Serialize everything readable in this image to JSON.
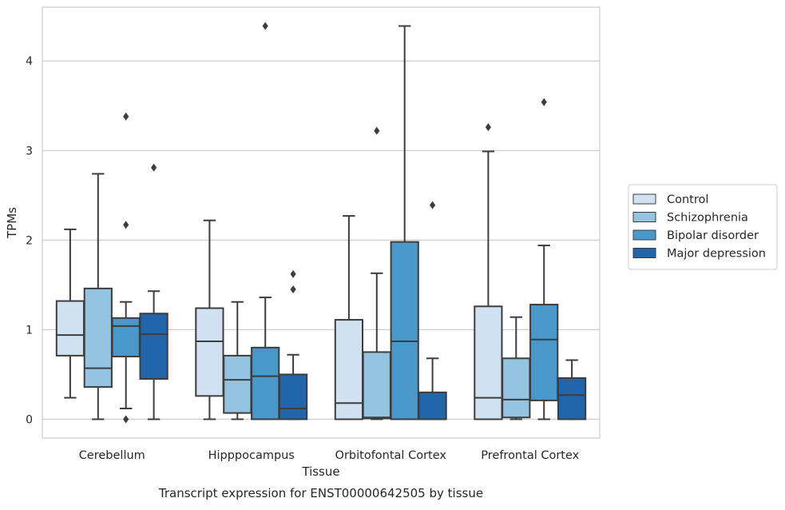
{
  "chart_data": {
    "type": "boxplot",
    "caption": "Transcript expression for ENST00000642505 by tissue",
    "xlabel": "Tissue",
    "ylabel": "TPMs",
    "ylim": [
      -0.21,
      4.6
    ],
    "yticks": [
      0,
      1,
      2,
      3,
      4
    ],
    "grid": "horizontal",
    "legend_position": "right",
    "categories": [
      "Cerebellum",
      "Hipppocampus",
      "Orbitofontal Cortex",
      "Prefrontal Cortex"
    ],
    "series": [
      {
        "name": "Control",
        "color": "#d0e1f2",
        "boxes": [
          {
            "whislo": 0.24,
            "q1": 0.71,
            "med": 0.94,
            "q3": 1.32,
            "whishi": 2.12,
            "fliers": []
          },
          {
            "whislo": 0.0,
            "q1": 0.26,
            "med": 0.87,
            "q3": 1.24,
            "whishi": 2.22,
            "fliers": []
          },
          {
            "whislo": 0.0,
            "q1": 0.0,
            "med": 0.18,
            "q3": 1.11,
            "whishi": 2.27,
            "fliers": []
          },
          {
            "whislo": 0.0,
            "q1": 0.0,
            "med": 0.24,
            "q3": 1.26,
            "whishi": 2.99,
            "fliers": [
              3.26
            ]
          }
        ]
      },
      {
        "name": "Schizophrenia",
        "color": "#94c4df",
        "boxes": [
          {
            "whislo": 0.0,
            "q1": 0.36,
            "med": 0.57,
            "q3": 1.46,
            "whishi": 2.74,
            "fliers": []
          },
          {
            "whislo": 0.0,
            "q1": 0.07,
            "med": 0.44,
            "q3": 0.71,
            "whishi": 1.31,
            "fliers": []
          },
          {
            "whislo": 0.0,
            "q1": 0.01,
            "med": 0.02,
            "q3": 0.75,
            "whishi": 1.63,
            "fliers": [
              3.22
            ]
          },
          {
            "whislo": 0.0,
            "q1": 0.02,
            "med": 0.22,
            "q3": 0.68,
            "whishi": 1.14,
            "fliers": []
          }
        ]
      },
      {
        "name": "Bipolar disorder",
        "color": "#4a98c9",
        "boxes": [
          {
            "whislo": 0.12,
            "q1": 0.7,
            "med": 1.04,
            "q3": 1.13,
            "whishi": 1.31,
            "fliers": [
              0.0,
              2.17,
              3.38
            ]
          },
          {
            "whislo": 0.0,
            "q1": 0.0,
            "med": 0.48,
            "q3": 0.8,
            "whishi": 1.36,
            "fliers": [
              4.39
            ]
          },
          {
            "whislo": 0.0,
            "q1": 0.0,
            "med": 0.87,
            "q3": 1.98,
            "whishi": 4.39,
            "fliers": []
          },
          {
            "whislo": 0.0,
            "q1": 0.21,
            "med": 0.89,
            "q3": 1.28,
            "whishi": 1.94,
            "fliers": [
              3.54
            ]
          }
        ]
      },
      {
        "name": "Major depression",
        "color": "#2165ab",
        "boxes": [
          {
            "whislo": 0.0,
            "q1": 0.45,
            "med": 0.95,
            "q3": 1.18,
            "whishi": 1.43,
            "fliers": [
              2.81
            ]
          },
          {
            "whislo": 0.0,
            "q1": 0.0,
            "med": 0.12,
            "q3": 0.5,
            "whishi": 0.72,
            "fliers": [
              1.45,
              1.62
            ]
          },
          {
            "whislo": 0.0,
            "q1": 0.0,
            "med": 0.0,
            "q3": 0.3,
            "whishi": 0.68,
            "fliers": [
              2.39
            ]
          },
          {
            "whislo": 0.0,
            "q1": 0.0,
            "med": 0.27,
            "q3": 0.46,
            "whishi": 0.66,
            "fliers": []
          }
        ]
      }
    ]
  }
}
